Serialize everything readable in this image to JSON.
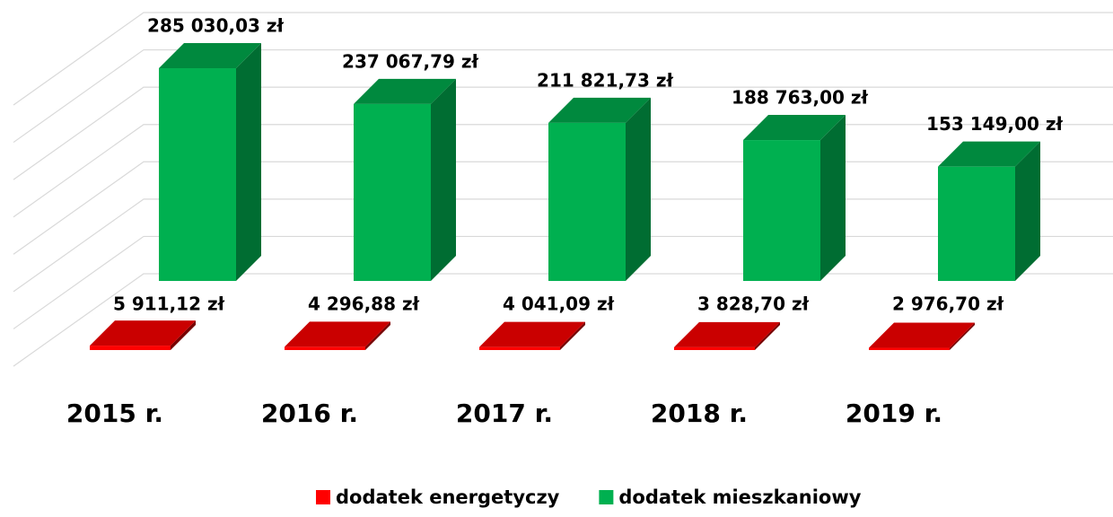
{
  "chart_data": {
    "type": "bar3d",
    "categories": [
      "2015 r.",
      "2016 r.",
      "2017 r.",
      "2018 r.",
      "2019 r."
    ],
    "series": [
      {
        "name": "dodatek energetyczy",
        "color": "#c00000",
        "values": [
          5911.12,
          4296.88,
          4041.09,
          3828.7,
          2976.7
        ],
        "value_labels": [
          "5 911,12 zł",
          "4 296,88 zł",
          "4 041,09 zł",
          "3 828,70 zł",
          "2 976,70 zł"
        ]
      },
      {
        "name": "dodatek mieszkaniowy",
        "color": "#00b050",
        "values": [
          285030.03,
          237067.79,
          211821.73,
          188763.0,
          153149.0
        ],
        "value_labels": [
          "285 030,03 zł",
          "237 067,79 zł",
          "211 821,73 zł",
          "188 763,00 zł",
          "153 149,00 zł"
        ]
      }
    ],
    "ylim": [
      0,
      350000
    ],
    "yticks": [
      0,
      50000,
      100000,
      150000,
      200000,
      250000,
      300000,
      350000
    ],
    "grid": true,
    "legend": "bottom"
  }
}
